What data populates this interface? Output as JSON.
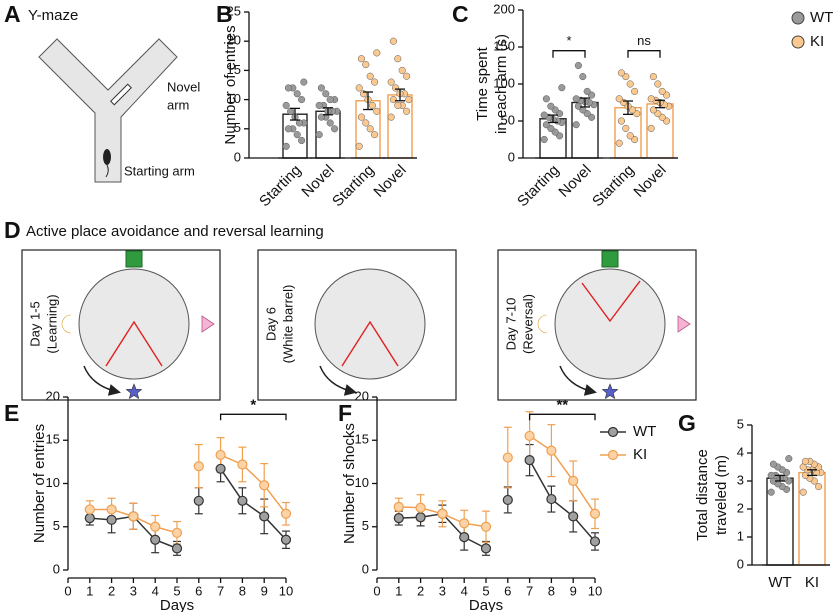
{
  "figure": {
    "panel_labels": [
      "A",
      "B",
      "C",
      "D",
      "E",
      "F",
      "G"
    ],
    "ymaze": {
      "title": "Y-maze",
      "novel_arm": [
        "Novel",
        "arm"
      ],
      "starting_arm": "Starting arm"
    },
    "apa": {
      "title": "Active place avoidance and reversal learning",
      "boxes": [
        [
          "Day 1-5",
          "(Learning)"
        ],
        [
          "Day 6",
          "(White barrel)"
        ],
        [
          "Day 7-10",
          "(Reversal)"
        ]
      ]
    }
  },
  "chart_data": [
    {
      "type": "bar",
      "ylabel": "Number of entries",
      "ylim": [
        0,
        25
      ],
      "yticks": [
        0,
        5,
        10,
        15,
        20,
        25
      ],
      "categories": [
        "Starting",
        "Novel"
      ],
      "xtick_rotation": 45,
      "series": [
        {
          "name": "WT",
          "color": "#222222",
          "point_color": "#9a9a9a",
          "values": [
            7.5,
            8
          ],
          "errors": [
            1,
            0.6
          ],
          "points": [
            [
              2,
              3,
              4,
              5,
              5,
              6,
              6,
              7,
              8,
              9,
              10,
              11,
              12,
              12,
              13
            ],
            [
              4,
              5,
              6,
              7,
              7,
              8,
              8,
              8,
              9,
              9,
              10,
              10,
              11,
              12
            ]
          ]
        },
        {
          "name": "KI",
          "color": "#f0a050",
          "point_color": "#fbc98f",
          "values": [
            9.8,
            10.8
          ],
          "errors": [
            1.5,
            1
          ],
          "points": [
            [
              2,
              4,
              5,
              6,
              7,
              8,
              9,
              10,
              11,
              12,
              13,
              14,
              16,
              17,
              18
            ],
            [
              7,
              8,
              9,
              9,
              10,
              10,
              11,
              11,
              12,
              13,
              14,
              15,
              17,
              20
            ]
          ]
        }
      ]
    },
    {
      "type": "bar",
      "ylabel": [
        "Time spent",
        "in each arm (s)"
      ],
      "ylim": [
        0,
        200
      ],
      "yticks": [
        0,
        50,
        100,
        150,
        200
      ],
      "categories": [
        "Starting",
        "Novel"
      ],
      "xtick_rotation": 45,
      "legend": "upper right",
      "annotations": [
        {
          "text": "*",
          "y": 145
        },
        {
          "text": "ns",
          "y": 145
        }
      ],
      "series": [
        {
          "name": "WT",
          "color": "#222222",
          "point_color": "#9a9a9a",
          "values": [
            53,
            75
          ],
          "errors": [
            5,
            6
          ],
          "points": [
            [
              25,
              30,
              35,
              40,
              45,
              48,
              50,
              52,
              55,
              58,
              60,
              65,
              70,
              80,
              95
            ],
            [
              45,
              55,
              60,
              65,
              70,
              72,
              75,
              76,
              78,
              80,
              85,
              90,
              110,
              125
            ]
          ]
        },
        {
          "name": "KI",
          "color": "#f0a050",
          "point_color": "#fbc98f",
          "values": [
            68,
            73
          ],
          "errors": [
            9,
            5
          ],
          "points": [
            [
              20,
              25,
              30,
              40,
              50,
              60,
              65,
              70,
              75,
              80,
              90,
              100,
              110,
              115
            ],
            [
              40,
              50,
              55,
              60,
              65,
              70,
              72,
              75,
              78,
              80,
              85,
              90,
              100,
              110
            ]
          ]
        }
      ]
    },
    {
      "type": "line",
      "ylabel": "Number of entries",
      "xlabel": "Days",
      "xlim": [
        0,
        10
      ],
      "xticks": [
        0,
        1,
        2,
        3,
        4,
        5,
        6,
        7,
        8,
        9,
        10
      ],
      "ylim": [
        0,
        20
      ],
      "yticks": [
        0,
        5,
        10,
        15,
        20
      ],
      "x": [
        1,
        2,
        3,
        4,
        5,
        null,
        6,
        null,
        7,
        8,
        9,
        10
      ],
      "annotations": [
        {
          "text": "*",
          "x": [
            7,
            10
          ],
          "y": 18
        }
      ],
      "series": [
        {
          "name": "WT",
          "color": "#333333",
          "marker_color": "#a0a0a0",
          "values": [
            6,
            5.8,
            6.2,
            3.5,
            2.5,
            null,
            8,
            null,
            11.7,
            8,
            6.2,
            3.5
          ],
          "errors": [
            0.8,
            1.5,
            1.5,
            1.5,
            0.8,
            null,
            1.5,
            null,
            1.5,
            1.5,
            2,
            1
          ]
        },
        {
          "name": "KI",
          "color": "#f0a050",
          "marker_color": "#fbd3a6",
          "values": [
            7,
            7,
            6.2,
            5,
            4.3,
            null,
            12,
            null,
            13.3,
            12.2,
            9.8,
            6.5
          ],
          "errors": [
            1,
            1.3,
            1.5,
            1.3,
            1.3,
            null,
            2.5,
            null,
            2,
            2,
            2.5,
            1.3
          ]
        }
      ]
    },
    {
      "type": "line",
      "ylabel": "Number of shocks",
      "xlabel": "Days",
      "legend": "right",
      "xlim": [
        0,
        10
      ],
      "xticks": [
        0,
        1,
        2,
        3,
        4,
        5,
        6,
        7,
        8,
        9,
        10
      ],
      "ylim": [
        0,
        20
      ],
      "yticks": [
        0,
        5,
        10,
        15,
        20
      ],
      "x": [
        1,
        2,
        3,
        4,
        5,
        null,
        6,
        null,
        7,
        8,
        9,
        10
      ],
      "annotations": [
        {
          "text": "**",
          "x": [
            7,
            10
          ],
          "y": 18
        }
      ],
      "series": [
        {
          "name": "WT",
          "color": "#333333",
          "marker_color": "#a0a0a0",
          "values": [
            6,
            6.1,
            6.5,
            3.8,
            2.5,
            null,
            8.1,
            null,
            12.7,
            8.2,
            6.2,
            3.3
          ],
          "errors": [
            0.8,
            1,
            1,
            1.5,
            0.8,
            null,
            1.5,
            null,
            1.8,
            1.5,
            1.8,
            1
          ]
        },
        {
          "name": "KI",
          "color": "#f0a050",
          "marker_color": "#fbd3a6",
          "values": [
            7.3,
            7.2,
            6.5,
            5.4,
            5,
            null,
            13,
            null,
            15.5,
            13.8,
            10.3,
            6.5
          ],
          "errors": [
            1,
            1.5,
            1.5,
            1.5,
            1.8,
            null,
            3.5,
            null,
            2.8,
            3,
            2.3,
            1.7
          ]
        }
      ]
    },
    {
      "type": "bar",
      "ylabel": [
        "Total distance",
        "traveled (m)"
      ],
      "ylim": [
        0,
        5
      ],
      "yticks": [
        0,
        1,
        2,
        3,
        4,
        5
      ],
      "categories": [
        "WT",
        "KI"
      ],
      "values": [
        3.1,
        3.3
      ],
      "errors": [
        0.1,
        0.1
      ],
      "colors": [
        "#222222",
        "#f0a050"
      ],
      "point_colors": [
        "#9a9a9a",
        "#fbc98f"
      ],
      "points": [
        [
          2.6,
          2.7,
          2.8,
          2.9,
          3.0,
          3.0,
          3.1,
          3.1,
          3.2,
          3.2,
          3.3,
          3.4,
          3.5,
          3.6,
          3.8
        ],
        [
          2.6,
          2.8,
          3.0,
          3.1,
          3.2,
          3.3,
          3.3,
          3.4,
          3.4,
          3.5,
          3.5,
          3.6,
          3.7,
          3.7
        ]
      ]
    }
  ]
}
